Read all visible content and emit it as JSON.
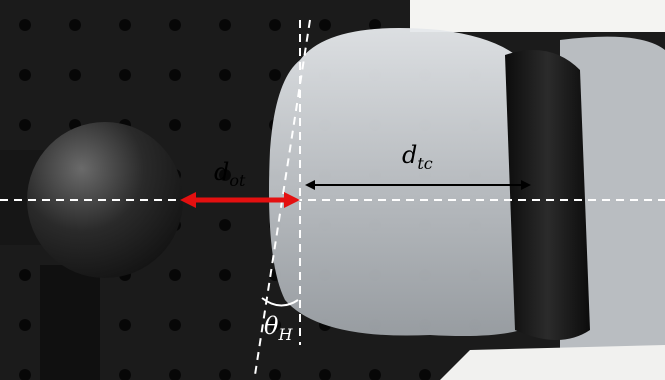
{
  "labels": [
    {
      "base": "d",
      "subscript": "ot"
    },
    {
      "base": "d",
      "subscript": "tc"
    },
    {
      "base": "θ",
      "subscript": "H"
    }
  ]
}
